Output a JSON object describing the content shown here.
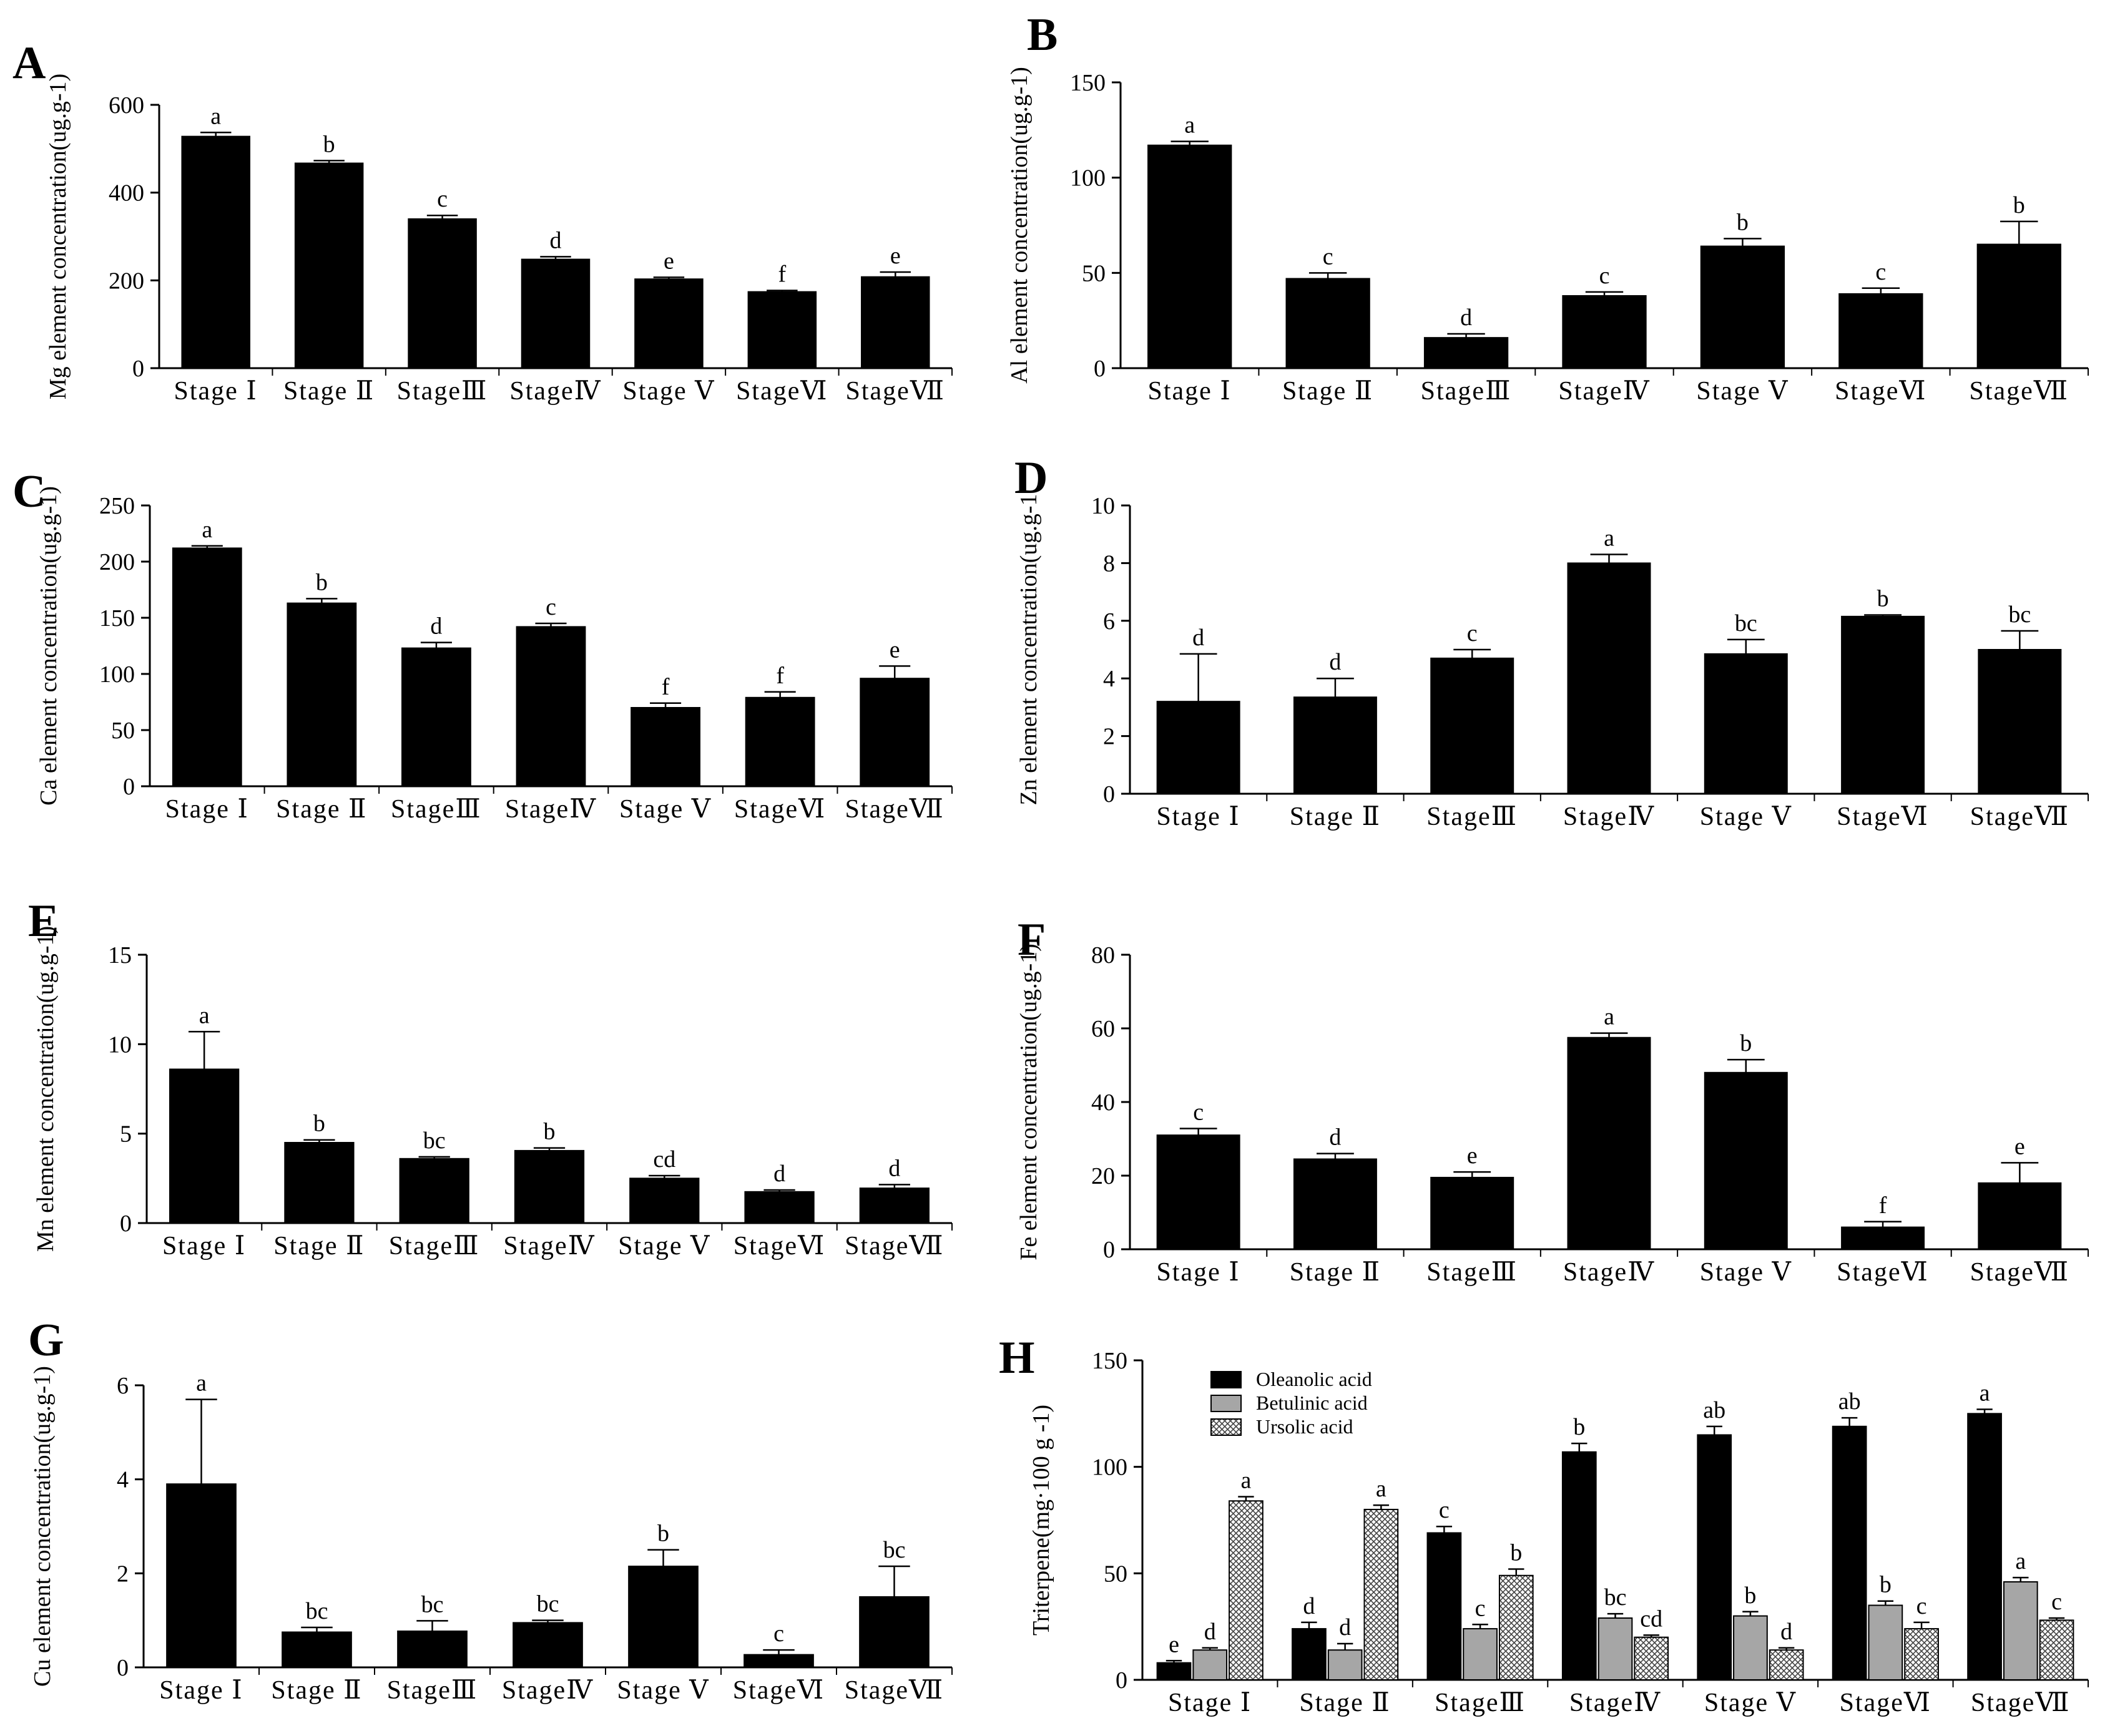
{
  "figure": {
    "panels": [
      "A",
      "B",
      "C",
      "D",
      "E",
      "F",
      "G",
      "H"
    ]
  },
  "chart_data": [
    {
      "panel": "A",
      "type": "bar",
      "ylabel": "Mg element concentration(ug.g-1)",
      "categories": [
        "Stage Ⅰ",
        "Stage Ⅱ",
        "StageⅢ",
        "StageⅣ",
        "Stage Ⅴ",
        "StageⅥ",
        "StageⅦ"
      ],
      "series": [
        {
          "name": "Mg",
          "values": [
            528,
            467,
            340,
            248,
            203,
            174,
            208
          ],
          "errors": [
            9,
            6,
            8,
            6,
            4,
            3,
            11
          ],
          "letters": [
            "a",
            "b",
            "c",
            "d",
            "e",
            "f",
            "e"
          ]
        }
      ],
      "ylim": [
        0,
        600
      ],
      "yticks": [
        0,
        200,
        400,
        600
      ]
    },
    {
      "panel": "B",
      "type": "bar",
      "ylabel": "Al element concentration(ug.g-1)",
      "categories": [
        "Stage Ⅰ",
        "Stage Ⅱ",
        "StageⅢ",
        "StageⅣ",
        "Stage Ⅴ",
        "StageⅥ",
        "StageⅦ"
      ],
      "series": [
        {
          "name": "Al",
          "values": [
            117,
            47,
            16,
            38,
            64,
            39,
            65
          ],
          "errors": [
            2,
            3,
            2,
            2,
            4,
            3,
            12
          ],
          "letters": [
            "a",
            "c",
            "d",
            "c",
            "b",
            "c",
            "b"
          ]
        }
      ],
      "ylim": [
        0,
        150
      ],
      "yticks": [
        0,
        50,
        100,
        150
      ]
    },
    {
      "panel": "C",
      "type": "bar",
      "ylabel": "Ca element concentration(ug.g-1)",
      "categories": [
        "Stage Ⅰ",
        "Stage Ⅱ",
        "StageⅢ",
        "StageⅣ",
        "Stage Ⅴ",
        "StageⅥ",
        "StageⅦ"
      ],
      "series": [
        {
          "name": "Ca",
          "values": [
            212,
            163,
            123,
            142,
            70,
            79,
            96
          ],
          "errors": [
            2,
            4,
            5,
            3,
            4,
            5,
            11
          ],
          "letters": [
            "a",
            "b",
            "d",
            "c",
            "f",
            "f",
            "e"
          ]
        }
      ],
      "ylim": [
        0,
        250
      ],
      "yticks": [
        0,
        50,
        100,
        150,
        200,
        250
      ]
    },
    {
      "panel": "D",
      "type": "bar",
      "ylabel": "Zn element concentration(ug.g-1",
      "categories": [
        "Stage Ⅰ",
        "Stage Ⅱ",
        "StageⅢ",
        "StageⅣ",
        "Stage Ⅴ",
        "StageⅥ",
        "StageⅦ"
      ],
      "series": [
        {
          "name": "Zn",
          "values": [
            3.2,
            3.35,
            4.7,
            8.0,
            4.85,
            6.15,
            5.0
          ],
          "errors": [
            1.65,
            0.65,
            0.3,
            0.3,
            0.5,
            0.05,
            0.65
          ],
          "letters": [
            "d",
            "d",
            "c",
            "a",
            "bc",
            "b",
            "bc"
          ]
        }
      ],
      "ylim": [
        0,
        10
      ],
      "yticks": [
        0,
        2,
        4,
        6,
        8,
        10
      ]
    },
    {
      "panel": "E",
      "type": "bar",
      "ylabel": "Mn element concentration(ug.g-1)",
      "categories": [
        "Stage Ⅰ",
        "Stage Ⅱ",
        "StageⅢ",
        "StageⅣ",
        "Stage Ⅴ",
        "StageⅥ",
        "StageⅦ"
      ],
      "series": [
        {
          "name": "Mn",
          "values": [
            8.6,
            4.5,
            3.6,
            4.05,
            2.5,
            1.75,
            1.95
          ],
          "errors": [
            2.1,
            0.15,
            0.1,
            0.15,
            0.15,
            0.1,
            0.2
          ],
          "letters": [
            "a",
            "b",
            "bc",
            "b",
            "cd",
            "d",
            "d"
          ]
        }
      ],
      "ylim": [
        0,
        15
      ],
      "yticks": [
        0,
        5,
        10,
        15
      ]
    },
    {
      "panel": "F",
      "type": "bar",
      "ylabel": "Fe element concentration(ug.g-1)",
      "categories": [
        "Stage Ⅰ",
        "Stage Ⅱ",
        "StageⅢ",
        "StageⅣ",
        "Stage Ⅴ",
        "StageⅥ",
        "StageⅦ"
      ],
      "series": [
        {
          "name": "Fe",
          "values": [
            31,
            24.5,
            19.5,
            57.5,
            48,
            6,
            18
          ],
          "errors": [
            1.8,
            1.5,
            1.5,
            1.2,
            3.5,
            1.5,
            5.5
          ],
          "letters": [
            "c",
            "d",
            "e",
            "a",
            "b",
            "f",
            "e"
          ]
        }
      ],
      "ylim": [
        0,
        80
      ],
      "yticks": [
        0,
        20,
        40,
        60,
        80
      ]
    },
    {
      "panel": "G",
      "type": "bar",
      "ylabel": "Cu element concentration(ug.g-1)",
      "categories": [
        "Stage Ⅰ",
        "Stage Ⅱ",
        "StageⅢ",
        "StageⅣ",
        "Stage Ⅴ",
        "StageⅥ",
        "StageⅦ"
      ],
      "series": [
        {
          "name": "Cu",
          "values": [
            3.9,
            0.75,
            0.77,
            0.95,
            2.15,
            0.27,
            1.5
          ],
          "errors": [
            1.8,
            0.1,
            0.22,
            0.05,
            0.35,
            0.1,
            0.65
          ],
          "letters": [
            "a",
            "bc",
            "bc",
            "bc",
            "b",
            "c",
            "bc"
          ]
        }
      ],
      "ylim": [
        0,
        6
      ],
      "yticks": [
        0,
        2,
        4,
        6
      ]
    },
    {
      "panel": "H",
      "type": "bar",
      "ylabel": "Triterpene(mg·100 g -1)",
      "categories": [
        "Stage Ⅰ",
        "Stage Ⅱ",
        "StageⅢ",
        "StageⅣ",
        "Stage Ⅴ",
        "StageⅥ",
        "StageⅦ"
      ],
      "series": [
        {
          "name": "Oleanolic acid",
          "fill": "solid",
          "values": [
            8,
            24,
            69,
            107,
            115,
            119,
            125
          ],
          "errors": [
            1,
            3,
            3,
            4,
            4,
            4,
            2
          ],
          "letters": [
            "e",
            "d",
            "c",
            "b",
            "ab",
            "ab",
            "a"
          ]
        },
        {
          "name": "Betulinic acid",
          "fill": "gray",
          "values": [
            14,
            14,
            24,
            29,
            30,
            35,
            46
          ],
          "errors": [
            1,
            3,
            2,
            2,
            2,
            2,
            2
          ],
          "letters": [
            "d",
            "d",
            "c",
            "bc",
            "b",
            "b",
            "a"
          ]
        },
        {
          "name": "Ursolic acid",
          "fill": "hatch",
          "values": [
            84,
            80,
            49,
            20,
            14,
            24,
            28
          ],
          "errors": [
            2,
            2,
            3,
            1,
            1,
            3,
            1
          ],
          "letters": [
            "a",
            "a",
            "b",
            "cd",
            "d",
            "c",
            "c"
          ]
        }
      ],
      "ylim": [
        0,
        150
      ],
      "yticks": [
        0,
        50,
        100,
        150
      ],
      "legend": "top-left"
    }
  ]
}
